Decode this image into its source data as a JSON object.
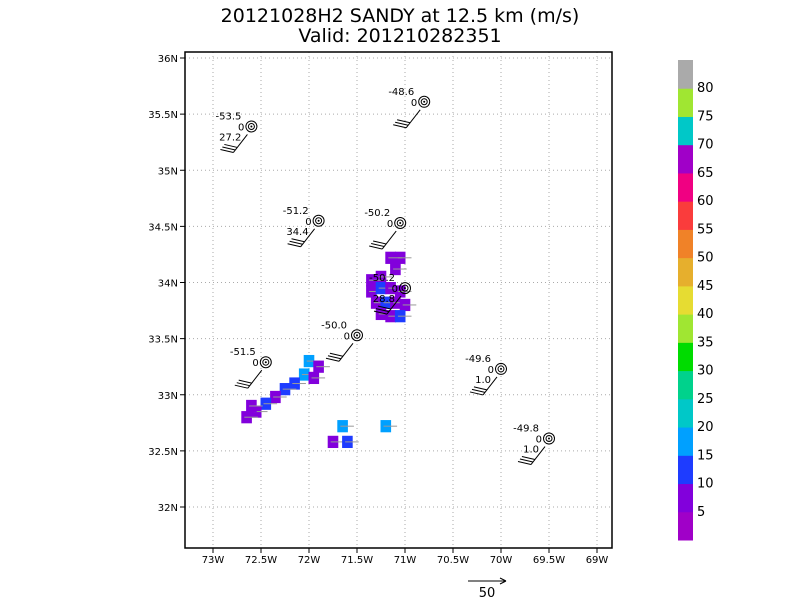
{
  "chart_data": {
    "type": "map-plot",
    "title": "20121028H2 SANDY at 12.5 km (m/s)",
    "subtitle": "Valid: 201210282351",
    "x_ticks": [
      "73W",
      "72.5W",
      "72W",
      "71.5W",
      "71W",
      "70.5W",
      "70W",
      "69.5W",
      "69W"
    ],
    "y_ticks": [
      "36N",
      "35.5N",
      "35N",
      "34.5N",
      "34N",
      "33.5N",
      "33N",
      "32.5N",
      "32N"
    ],
    "xlim": [
      -73.25,
      -68.85
    ],
    "ylim": [
      31.65,
      36.05
    ],
    "grid": true,
    "colorbar": {
      "labels": [
        "5",
        "10",
        "15",
        "20",
        "25",
        "30",
        "35",
        "40",
        "45",
        "50",
        "55",
        "60",
        "65",
        "70",
        "75",
        "80"
      ],
      "colors": [
        "#a000c8",
        "#8200dc",
        "#1e3cff",
        "#00a0ff",
        "#00c8c8",
        "#00d28c",
        "#00dc00",
        "#a0e632",
        "#e6dc32",
        "#e6af2d",
        "#f08228",
        "#fa3c3c",
        "#f00082",
        "#a000c8",
        "#00c8c8",
        "#a0e632",
        "#aaaaaa"
      ]
    },
    "stations": [
      {
        "lon": -72.6,
        "lat": 35.39,
        "top": "-53.5",
        "mid": "0",
        "low": "27.2"
      },
      {
        "lon": -70.8,
        "lat": 35.61,
        "top": "-48.6",
        "mid": "0",
        "low": ""
      },
      {
        "lon": -71.9,
        "lat": 34.55,
        "top": "-51.2",
        "mid": "0",
        "low": "34.4"
      },
      {
        "lon": -71.05,
        "lat": 34.53,
        "top": "-50.2",
        "mid": "0",
        "low": ""
      },
      {
        "lon": -71.0,
        "lat": 33.95,
        "top": "-50.2",
        "mid": "0",
        "low": "28.8"
      },
      {
        "lon": -71.5,
        "lat": 33.53,
        "top": "-50.0",
        "mid": "0",
        "low": ""
      },
      {
        "lon": -72.45,
        "lat": 33.29,
        "top": "-51.5",
        "mid": "0",
        "low": ""
      },
      {
        "lon": -70.0,
        "lat": 33.23,
        "top": "-49.6",
        "mid": "0",
        "low": "1.0"
      },
      {
        "lon": -69.5,
        "lat": 32.61,
        "top": "-49.8",
        "mid": "0",
        "low": "1.0"
      }
    ],
    "wind_cells": [
      {
        "lon": -71.05,
        "lat": 34.22,
        "v": 8
      },
      {
        "lon": -71.15,
        "lat": 34.22,
        "v": 8
      },
      {
        "lon": -71.1,
        "lat": 34.12,
        "v": 9
      },
      {
        "lon": -71.25,
        "lat": 34.05,
        "v": 9
      },
      {
        "lon": -71.35,
        "lat": 34.02,
        "v": 7
      },
      {
        "lon": -71.35,
        "lat": 33.92,
        "v": 8
      },
      {
        "lon": -71.25,
        "lat": 33.95,
        "v": 12
      },
      {
        "lon": -71.15,
        "lat": 33.95,
        "v": 9
      },
      {
        "lon": -71.05,
        "lat": 33.92,
        "v": 7
      },
      {
        "lon": -71.3,
        "lat": 33.82,
        "v": 9
      },
      {
        "lon": -71.2,
        "lat": 33.82,
        "v": 14
      },
      {
        "lon": -71.1,
        "lat": 33.82,
        "v": 8
      },
      {
        "lon": -71.0,
        "lat": 33.8,
        "v": 9
      },
      {
        "lon": -71.25,
        "lat": 33.72,
        "v": 8
      },
      {
        "lon": -71.15,
        "lat": 33.7,
        "v": 9
      },
      {
        "lon": -71.05,
        "lat": 33.7,
        "v": 13
      },
      {
        "lon": -72.0,
        "lat": 33.3,
        "v": 18
      },
      {
        "lon": -71.9,
        "lat": 33.25,
        "v": 9
      },
      {
        "lon": -72.05,
        "lat": 33.18,
        "v": 18
      },
      {
        "lon": -71.95,
        "lat": 33.15,
        "v": 8
      },
      {
        "lon": -72.15,
        "lat": 33.1,
        "v": 13
      },
      {
        "lon": -72.25,
        "lat": 33.05,
        "v": 12
      },
      {
        "lon": -72.35,
        "lat": 32.98,
        "v": 9
      },
      {
        "lon": -72.45,
        "lat": 32.92,
        "v": 13
      },
      {
        "lon": -72.55,
        "lat": 32.85,
        "v": 8
      },
      {
        "lon": -72.65,
        "lat": 32.8,
        "v": 9
      },
      {
        "lon": -72.6,
        "lat": 32.9,
        "v": 8
      },
      {
        "lon": -71.65,
        "lat": 32.72,
        "v": 18
      },
      {
        "lon": -71.2,
        "lat": 32.72,
        "v": 18
      },
      {
        "lon": -71.75,
        "lat": 32.58,
        "v": 9
      },
      {
        "lon": -71.6,
        "lat": 32.58,
        "v": 13
      }
    ],
    "reference_vector": "50"
  }
}
